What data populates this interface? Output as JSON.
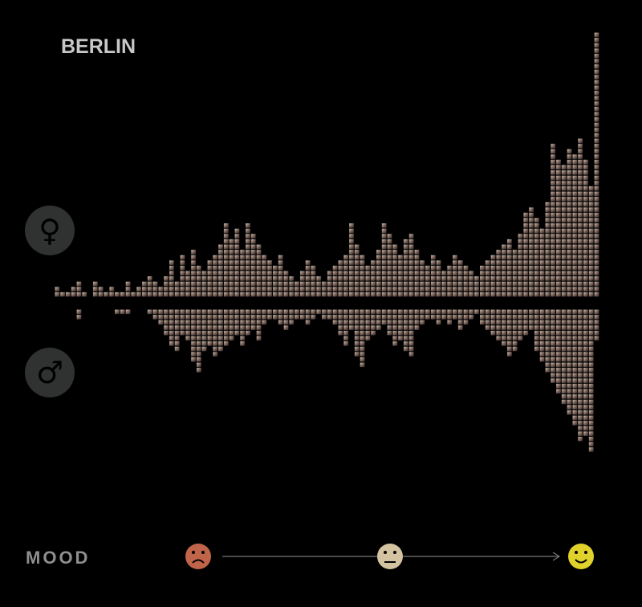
{
  "chart_data": {
    "type": "mirror-stack",
    "title": "BERLIN",
    "x_label": "MOOD",
    "series": [
      {
        "name": "♀",
        "color": "#cbb9a4",
        "values": [
          2,
          1,
          1,
          2,
          3,
          1,
          0,
          3,
          2,
          1,
          2,
          1,
          1,
          3,
          1,
          2,
          3,
          4,
          3,
          2,
          4,
          7,
          3,
          8,
          5,
          9,
          6,
          5,
          7,
          8,
          10,
          14,
          11,
          13,
          9,
          14,
          12,
          10,
          8,
          7,
          6,
          8,
          5,
          4,
          3,
          5,
          7,
          6,
          4,
          3,
          5,
          6,
          7,
          8,
          14,
          10,
          8,
          6,
          7,
          9,
          14,
          12,
          10,
          8,
          11,
          12,
          9,
          7,
          6,
          8,
          7,
          5,
          6,
          8,
          7,
          6,
          5,
          4,
          6,
          7,
          8,
          9,
          10,
          11,
          9,
          12,
          16,
          17,
          15,
          13,
          18,
          29,
          26,
          25,
          28,
          27,
          30,
          26,
          21,
          50
        ]
      },
      {
        "name": "♂",
        "color": "#b9a89a",
        "values": [
          0,
          0,
          0,
          0,
          2,
          0,
          0,
          0,
          0,
          0,
          0,
          1,
          1,
          1,
          0,
          0,
          0,
          1,
          2,
          3,
          5,
          7,
          8,
          5,
          6,
          10,
          12,
          8,
          7,
          9,
          8,
          7,
          6,
          5,
          7,
          5,
          4,
          6,
          3,
          2,
          2,
          3,
          4,
          3,
          2,
          2,
          3,
          2,
          1,
          2,
          2,
          3,
          5,
          7,
          4,
          9,
          11,
          6,
          5,
          4,
          3,
          5,
          7,
          6,
          8,
          9,
          4,
          3,
          2,
          2,
          3,
          2,
          3,
          2,
          4,
          3,
          2,
          1,
          3,
          4,
          5,
          6,
          7,
          9,
          8,
          6,
          5,
          4,
          8,
          10,
          12,
          14,
          16,
          18,
          20,
          22,
          25,
          24,
          27,
          6
        ]
      }
    ]
  }
}
